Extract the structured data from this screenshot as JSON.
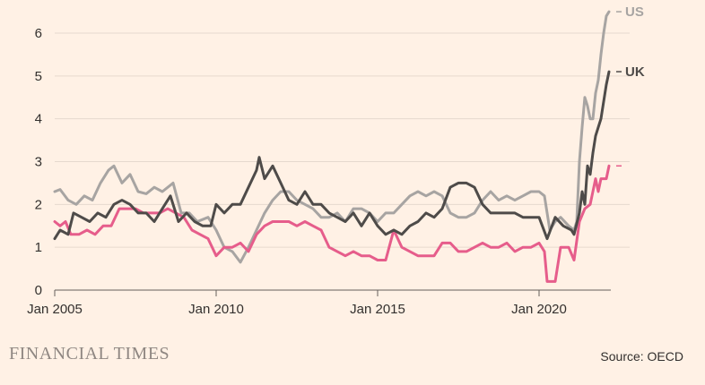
{
  "chart_data": {
    "type": "line",
    "x_start": "2005-01",
    "x_end": "2021-12",
    "x_ticks": [
      {
        "date": "2005-01",
        "label": "Jan 2005"
      },
      {
        "date": "2010-01",
        "label": "Jan 2010"
      },
      {
        "date": "2015-01",
        "label": "Jan 2015"
      },
      {
        "date": "2020-01",
        "label": "Jan 2020"
      }
    ],
    "y_ticks": [
      0,
      1,
      2,
      3,
      4,
      5,
      6
    ],
    "ylim": [
      0,
      6.6
    ],
    "grid": "horizontal",
    "series": [
      {
        "name": "US",
        "color": "#a7a4a2",
        "values": [
          [
            "2005-01",
            2.3
          ],
          [
            "2005-03",
            2.35
          ],
          [
            "2005-06",
            2.1
          ],
          [
            "2005-09",
            2.0
          ],
          [
            "2005-12",
            2.2
          ],
          [
            "2006-03",
            2.1
          ],
          [
            "2006-06",
            2.5
          ],
          [
            "2006-09",
            2.8
          ],
          [
            "2006-11",
            2.9
          ],
          [
            "2007-02",
            2.5
          ],
          [
            "2007-05",
            2.7
          ],
          [
            "2007-08",
            2.3
          ],
          [
            "2007-11",
            2.25
          ],
          [
            "2008-02",
            2.4
          ],
          [
            "2008-05",
            2.3
          ],
          [
            "2008-09",
            2.5
          ],
          [
            "2008-12",
            1.8
          ],
          [
            "2009-03",
            1.8
          ],
          [
            "2009-06",
            1.6
          ],
          [
            "2009-10",
            1.7
          ],
          [
            "2010-01",
            1.4
          ],
          [
            "2010-04",
            1.0
          ],
          [
            "2010-07",
            0.9
          ],
          [
            "2010-10",
            0.65
          ],
          [
            "2011-01",
            1.0
          ],
          [
            "2011-04",
            1.4
          ],
          [
            "2011-07",
            1.8
          ],
          [
            "2011-10",
            2.1
          ],
          [
            "2012-01",
            2.3
          ],
          [
            "2012-04",
            2.3
          ],
          [
            "2012-07",
            2.1
          ],
          [
            "2012-10",
            2.0
          ],
          [
            "2013-01",
            1.9
          ],
          [
            "2013-04",
            1.7
          ],
          [
            "2013-07",
            1.7
          ],
          [
            "2013-10",
            1.8
          ],
          [
            "2014-01",
            1.6
          ],
          [
            "2014-04",
            1.9
          ],
          [
            "2014-07",
            1.9
          ],
          [
            "2014-10",
            1.8
          ],
          [
            "2015-01",
            1.6
          ],
          [
            "2015-04",
            1.8
          ],
          [
            "2015-07",
            1.8
          ],
          [
            "2015-10",
            2.0
          ],
          [
            "2016-01",
            2.2
          ],
          [
            "2016-04",
            2.3
          ],
          [
            "2016-07",
            2.2
          ],
          [
            "2016-10",
            2.3
          ],
          [
            "2017-01",
            2.2
          ],
          [
            "2017-04",
            1.8
          ],
          [
            "2017-07",
            1.7
          ],
          [
            "2017-10",
            1.7
          ],
          [
            "2018-01",
            1.8
          ],
          [
            "2018-04",
            2.1
          ],
          [
            "2018-07",
            2.3
          ],
          [
            "2018-10",
            2.1
          ],
          [
            "2019-01",
            2.2
          ],
          [
            "2019-04",
            2.1
          ],
          [
            "2019-07",
            2.2
          ],
          [
            "2019-10",
            2.3
          ],
          [
            "2020-01",
            2.3
          ],
          [
            "2020-03",
            2.2
          ],
          [
            "2020-05",
            1.4
          ],
          [
            "2020-07",
            1.6
          ],
          [
            "2020-09",
            1.7
          ],
          [
            "2020-12",
            1.5
          ],
          [
            "2021-02",
            1.4
          ],
          [
            "2021-03",
            1.6
          ],
          [
            "2021-04",
            3.0
          ],
          [
            "2021-05",
            3.8
          ],
          [
            "2021-06",
            4.5
          ],
          [
            "2021-07",
            4.3
          ],
          [
            "2021-08",
            4.0
          ],
          [
            "2021-09",
            4.0
          ],
          [
            "2021-10",
            4.6
          ],
          [
            "2021-11",
            4.9
          ],
          [
            "2021-12",
            5.5
          ],
          [
            "2022-01",
            6.0
          ],
          [
            "2022-02",
            6.4
          ],
          [
            "2022-03",
            6.5
          ]
        ]
      },
      {
        "name": "UK",
        "color": "#4e4b49",
        "values": [
          [
            "2005-01",
            1.2
          ],
          [
            "2005-03",
            1.4
          ],
          [
            "2005-06",
            1.3
          ],
          [
            "2005-08",
            1.8
          ],
          [
            "2005-11",
            1.7
          ],
          [
            "2006-02",
            1.6
          ],
          [
            "2006-05",
            1.8
          ],
          [
            "2006-08",
            1.7
          ],
          [
            "2006-11",
            2.0
          ],
          [
            "2007-02",
            2.1
          ],
          [
            "2007-05",
            2.0
          ],
          [
            "2007-08",
            1.8
          ],
          [
            "2007-11",
            1.8
          ],
          [
            "2008-02",
            1.6
          ],
          [
            "2008-05",
            1.9
          ],
          [
            "2008-08",
            2.2
          ],
          [
            "2008-11",
            1.6
          ],
          [
            "2009-02",
            1.8
          ],
          [
            "2009-05",
            1.6
          ],
          [
            "2009-08",
            1.5
          ],
          [
            "2009-11",
            1.5
          ],
          [
            "2010-01",
            2.0
          ],
          [
            "2010-04",
            1.8
          ],
          [
            "2010-07",
            2.0
          ],
          [
            "2010-10",
            2.0
          ],
          [
            "2011-01",
            2.4
          ],
          [
            "2011-04",
            2.8
          ],
          [
            "2011-05",
            3.1
          ],
          [
            "2011-07",
            2.6
          ],
          [
            "2011-10",
            2.9
          ],
          [
            "2012-01",
            2.5
          ],
          [
            "2012-04",
            2.1
          ],
          [
            "2012-07",
            2.0
          ],
          [
            "2012-10",
            2.3
          ],
          [
            "2013-01",
            2.0
          ],
          [
            "2013-04",
            2.0
          ],
          [
            "2013-07",
            1.8
          ],
          [
            "2013-10",
            1.7
          ],
          [
            "2014-01",
            1.6
          ],
          [
            "2014-04",
            1.8
          ],
          [
            "2014-07",
            1.5
          ],
          [
            "2014-10",
            1.8
          ],
          [
            "2015-01",
            1.5
          ],
          [
            "2015-04",
            1.3
          ],
          [
            "2015-07",
            1.4
          ],
          [
            "2015-10",
            1.3
          ],
          [
            "2016-01",
            1.5
          ],
          [
            "2016-04",
            1.6
          ],
          [
            "2016-07",
            1.8
          ],
          [
            "2016-10",
            1.7
          ],
          [
            "2017-01",
            1.9
          ],
          [
            "2017-04",
            2.4
          ],
          [
            "2017-07",
            2.5
          ],
          [
            "2017-10",
            2.5
          ],
          [
            "2018-01",
            2.4
          ],
          [
            "2018-04",
            2.0
          ],
          [
            "2018-07",
            1.8
          ],
          [
            "2018-10",
            1.8
          ],
          [
            "2019-01",
            1.8
          ],
          [
            "2019-04",
            1.8
          ],
          [
            "2019-07",
            1.7
          ],
          [
            "2019-10",
            1.7
          ],
          [
            "2020-01",
            1.7
          ],
          [
            "2020-04",
            1.2
          ],
          [
            "2020-07",
            1.7
          ],
          [
            "2020-10",
            1.5
          ],
          [
            "2021-01",
            1.4
          ],
          [
            "2021-02",
            1.3
          ],
          [
            "2021-04",
            1.8
          ],
          [
            "2021-05",
            2.3
          ],
          [
            "2021-06",
            2.0
          ],
          [
            "2021-07",
            2.9
          ],
          [
            "2021-08",
            2.7
          ],
          [
            "2021-09",
            3.2
          ],
          [
            "2021-10",
            3.6
          ],
          [
            "2021-11",
            3.8
          ],
          [
            "2021-12",
            4.0
          ],
          [
            "2022-01",
            4.4
          ],
          [
            "2022-02",
            4.8
          ],
          [
            "2022-03",
            5.1
          ]
        ]
      },
      {
        "name": "",
        "color": "#e65d8b",
        "values": [
          [
            "2005-01",
            1.6
          ],
          [
            "2005-03",
            1.5
          ],
          [
            "2005-05",
            1.6
          ],
          [
            "2005-07",
            1.3
          ],
          [
            "2005-10",
            1.3
          ],
          [
            "2006-01",
            1.4
          ],
          [
            "2006-04",
            1.3
          ],
          [
            "2006-07",
            1.5
          ],
          [
            "2006-10",
            1.5
          ],
          [
            "2007-01",
            1.9
          ],
          [
            "2007-04",
            1.9
          ],
          [
            "2007-07",
            1.9
          ],
          [
            "2007-10",
            1.8
          ],
          [
            "2008-01",
            1.8
          ],
          [
            "2008-04",
            1.8
          ],
          [
            "2008-07",
            1.9
          ],
          [
            "2008-10",
            1.8
          ],
          [
            "2009-01",
            1.7
          ],
          [
            "2009-04",
            1.4
          ],
          [
            "2009-07",
            1.3
          ],
          [
            "2009-10",
            1.2
          ],
          [
            "2010-01",
            0.8
          ],
          [
            "2010-04",
            1.0
          ],
          [
            "2010-07",
            1.0
          ],
          [
            "2010-10",
            1.1
          ],
          [
            "2011-01",
            0.9
          ],
          [
            "2011-04",
            1.3
          ],
          [
            "2011-07",
            1.5
          ],
          [
            "2011-10",
            1.6
          ],
          [
            "2012-01",
            1.6
          ],
          [
            "2012-04",
            1.6
          ],
          [
            "2012-07",
            1.5
          ],
          [
            "2012-10",
            1.6
          ],
          [
            "2013-01",
            1.5
          ],
          [
            "2013-04",
            1.4
          ],
          [
            "2013-07",
            1.0
          ],
          [
            "2013-10",
            0.9
          ],
          [
            "2014-01",
            0.8
          ],
          [
            "2014-04",
            0.9
          ],
          [
            "2014-07",
            0.8
          ],
          [
            "2014-10",
            0.8
          ],
          [
            "2015-01",
            0.7
          ],
          [
            "2015-04",
            0.7
          ],
          [
            "2015-07",
            1.4
          ],
          [
            "2015-10",
            1.0
          ],
          [
            "2016-01",
            0.9
          ],
          [
            "2016-04",
            0.8
          ],
          [
            "2016-07",
            0.8
          ],
          [
            "2016-10",
            0.8
          ],
          [
            "2017-01",
            1.1
          ],
          [
            "2017-04",
            1.1
          ],
          [
            "2017-07",
            0.9
          ],
          [
            "2017-10",
            0.9
          ],
          [
            "2018-01",
            1.0
          ],
          [
            "2018-04",
            1.1
          ],
          [
            "2018-07",
            1.0
          ],
          [
            "2018-10",
            1.0
          ],
          [
            "2019-01",
            1.1
          ],
          [
            "2019-04",
            0.9
          ],
          [
            "2019-07",
            1.0
          ],
          [
            "2019-10",
            1.0
          ],
          [
            "2020-01",
            1.1
          ],
          [
            "2020-03",
            0.9
          ],
          [
            "2020-04",
            0.2
          ],
          [
            "2020-07",
            0.2
          ],
          [
            "2020-09",
            1.0
          ],
          [
            "2020-12",
            1.0
          ],
          [
            "2021-02",
            0.7
          ],
          [
            "2021-04",
            1.6
          ],
          [
            "2021-06",
            1.9
          ],
          [
            "2021-08",
            2.0
          ],
          [
            "2021-09",
            2.3
          ],
          [
            "2021-10",
            2.6
          ],
          [
            "2021-11",
            2.3
          ],
          [
            "2021-12",
            2.6
          ],
          [
            "2022-02",
            2.6
          ],
          [
            "2022-03",
            2.9
          ]
        ]
      }
    ],
    "end_labels": [
      {
        "text": "US",
        "value": 6.5,
        "color": "#a7a4a2"
      },
      {
        "text": "UK",
        "value": 5.1,
        "color": "#4e4b49"
      },
      {
        "text": "",
        "value": 2.9,
        "color": "#e65d8b"
      }
    ]
  },
  "footer": {
    "brand": "FINANCIAL TIMES",
    "source": "Source: OECD"
  }
}
